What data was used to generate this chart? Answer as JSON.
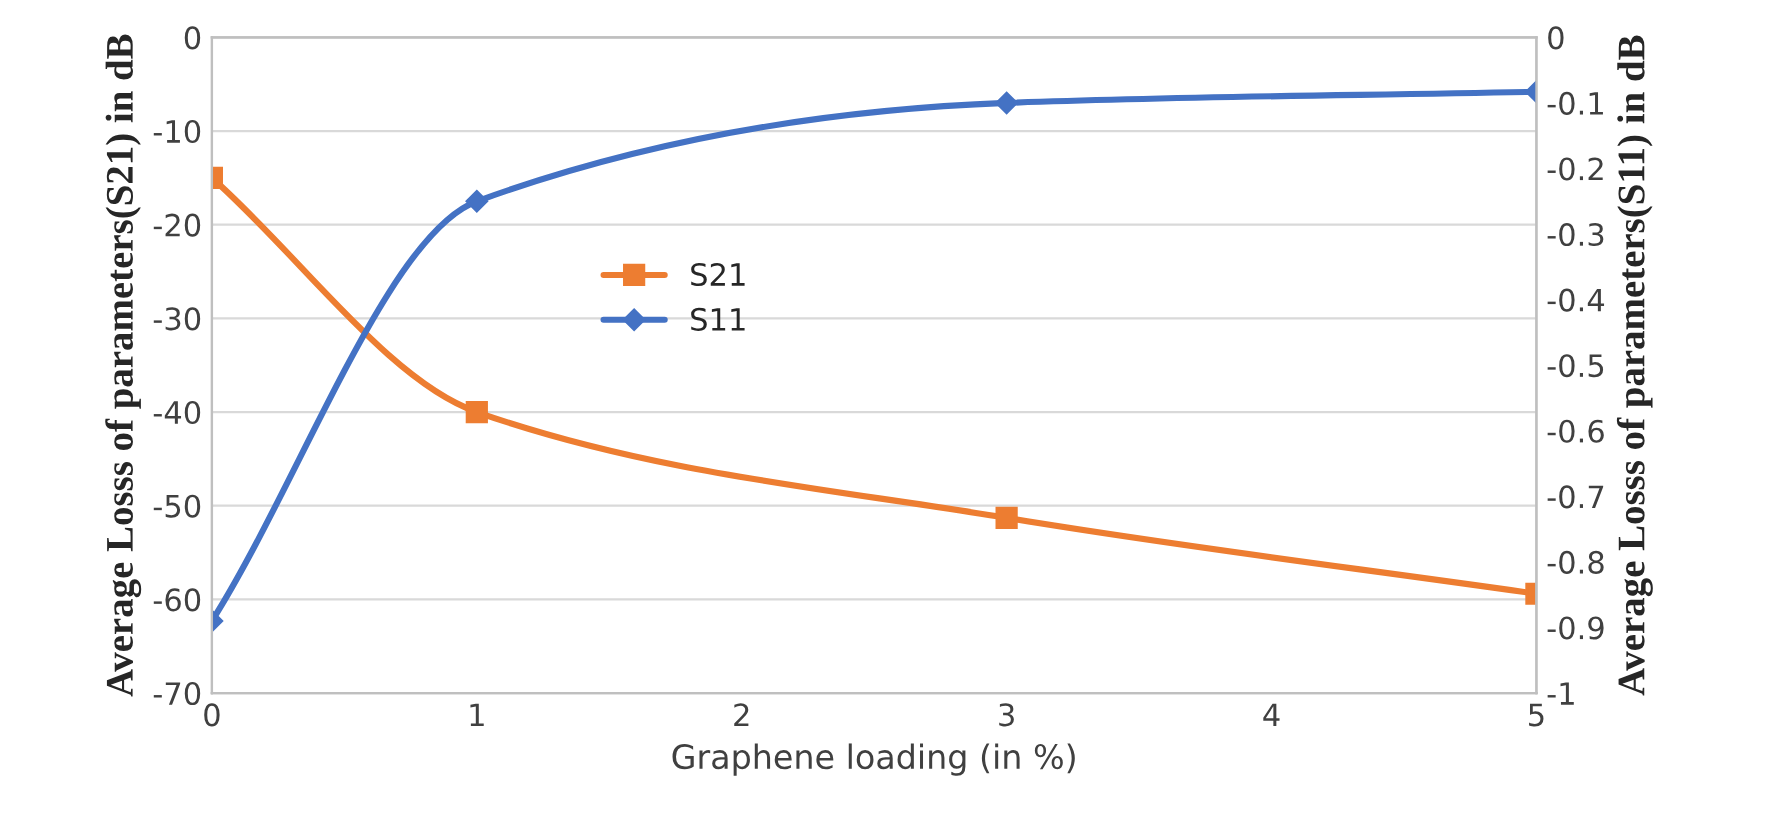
{
  "chart_data": {
    "type": "line",
    "xlabel": "Graphene loading (in %)",
    "ylabel": "Average Losss of parameters(S21) in dB",
    "y2label": "Average Losss of parameters(S11) in dB",
    "x": [
      0,
      1,
      3,
      5
    ],
    "series": [
      {
        "name": "S21",
        "color": "#ed7d31",
        "marker": "square",
        "values": [
          -15,
          -40,
          -51.3,
          -59.4
        ]
      },
      {
        "name": "S11",
        "color": "#4472c4",
        "marker": "diamond",
        "axis": "y2",
        "values": [
          -0.89,
          -0.25,
          -0.1,
          -0.083
        ]
      }
    ],
    "xlim": [
      0,
      5
    ],
    "xticks": [
      0,
      1,
      2,
      3,
      4,
      5
    ],
    "ylim": [
      -70,
      0
    ],
    "yticks": [
      -70,
      -60,
      -50,
      -40,
      -30,
      -20,
      -10,
      0
    ],
    "y2lim": [
      -1,
      0
    ],
    "y2ticks": [
      -1,
      -0.9,
      -0.8,
      -0.7,
      -0.6,
      -0.5,
      -0.4,
      -0.3,
      -0.2,
      -0.1,
      0
    ],
    "grid": "y",
    "legend": "center",
    "line_style": "solid"
  }
}
